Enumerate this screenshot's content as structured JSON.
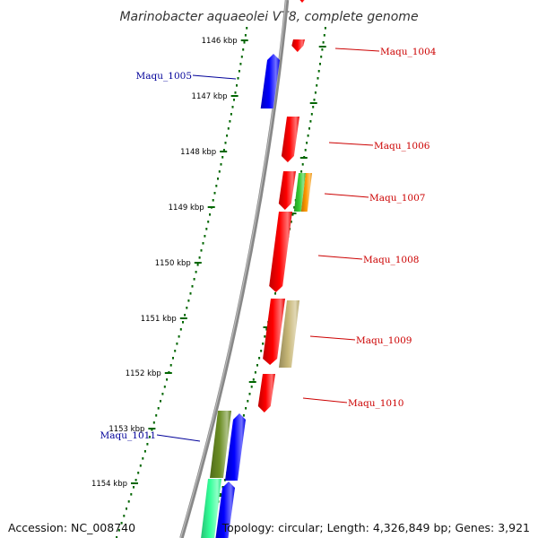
{
  "title": "Marinobacter aquaeolei VT8, complete genome",
  "footer": {
    "accession": "Accession: NC_008740",
    "topology": "Topology: circular; Length: 4,326,849 bp; Genes: 3,921"
  },
  "scale_labels": [
    "1146 kbp",
    "1147 kbp",
    "1148 kbp",
    "1149 kbp",
    "1150 kbp",
    "1151 kbp",
    "1152 kbp",
    "1153 kbp",
    "1154 kbp"
  ],
  "colors": {
    "forward": "#ff0000",
    "reverse": "#0000ff",
    "forward_label": "#cc0000",
    "reverse_label": "#000099",
    "backbone": "#888888",
    "scale_ring": "#006600",
    "olive": "#6b8e23",
    "khaki": "#c8b878",
    "green": "#33cc33",
    "orange": "#ff9900",
    "aquamarine": "#33ff99"
  },
  "genes": [
    {
      "label": "Maqu_1004",
      "strand": "forward",
      "color": "forward"
    },
    {
      "label": "Maqu_1005",
      "strand": "reverse",
      "color": "reverse"
    },
    {
      "label": "Maqu_1006",
      "strand": "forward",
      "color": "forward"
    },
    {
      "label": "Maqu_1007",
      "strand": "forward",
      "color": "forward"
    },
    {
      "label": "Maqu_1008",
      "strand": "forward",
      "color": "forward"
    },
    {
      "label": "Maqu_1009",
      "strand": "forward",
      "color": "khaki"
    },
    {
      "label": "Maqu_1010",
      "strand": "forward",
      "color": "forward"
    },
    {
      "label": "Maqu_1011",
      "strand": "reverse",
      "color": "olive"
    }
  ]
}
